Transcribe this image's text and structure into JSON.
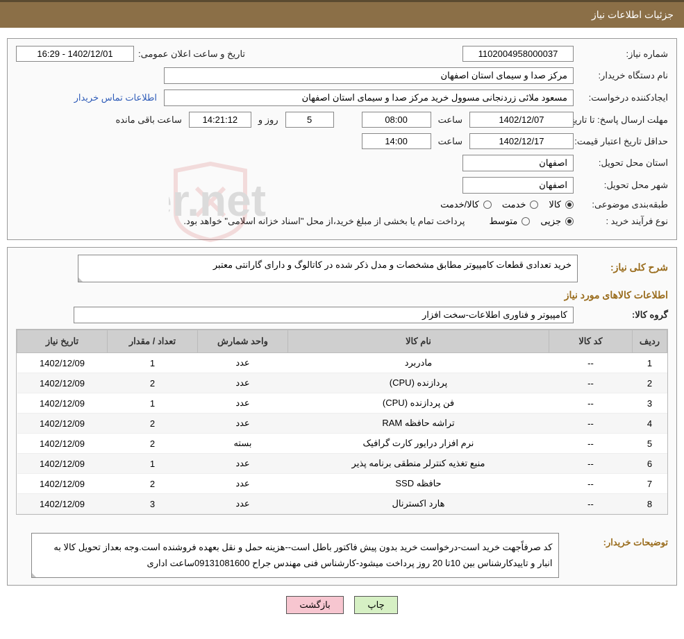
{
  "header": {
    "title": "جزئیات اطلاعات نیاز"
  },
  "labels": {
    "request_no": "شماره نیاز:",
    "announce_dt": "تاریخ و ساعت اعلان عمومی:",
    "buyer_org": "نام دستگاه خریدار:",
    "requester": "ایجاد‌کننده درخواست:",
    "buyer_contact": "اطلاعات تماس خریدار",
    "deadline": "مهلت ارسال پاسخ:",
    "until_date": "تا تاریخ:",
    "hour": "ساعت",
    "days_and": "روز و",
    "remaining": "ساعت باقی مانده",
    "min_validity": "حداقل تاریخ اعتبار قیمت:",
    "delivery_province": "استان محل تحویل:",
    "delivery_city": "شهر محل تحویل:",
    "category": "طبقه‌بندی موضوعی:",
    "purchase_type": "نوع فرآیند خرید :",
    "radio_goods": "کالا",
    "radio_service": "خدمت",
    "radio_goods_service": "کالا/خدمت",
    "radio_partial": "جزیی",
    "radio_medium": "متوسط",
    "payment_note": "پرداخت تمام یا بخشی از مبلغ خرید،از محل \"اسناد خزانه اسلامی\" خواهد بود.",
    "overall_desc": "شرح کلی نیاز:",
    "goods_info": "اطلاعات کالاهای مورد نیاز",
    "goods_group": "گروه کالا:",
    "buyer_notes": "توضیحات خریدار:"
  },
  "fields": {
    "request_no": "1102004958000037",
    "announce_dt": "1402/12/01 - 16:29",
    "buyer_org": "مرکز صدا و سیمای استان اصفهان",
    "requester": "مسعود ملائی زردنجانی مسوول خرید مرکز صدا و سیمای استان اصفهان",
    "deadline_date": "1402/12/07",
    "deadline_time": "08:00",
    "days_left": "5",
    "time_left": "14:21:12",
    "validity_date": "1402/12/17",
    "validity_time": "14:00",
    "province": "اصفهان",
    "city": "اصفهان",
    "overall_desc": "خرید تعدادی قطعات کامپیوتر مطابق مشخصات و مدل ذکر شده در کاتالوگ و دارای گارانتی معتبر",
    "goods_group": "کامپیوتر و فناوری اطلاعات-سخت افزار",
    "buyer_notes": "کد صرفاًجهت خرید است-درخواست خرید بدون پیش فاکتور باطل است--هزینه حمل و نقل بعهده فروشنده است.وجه بعداز تحویل کالا به انبار و تاییدکارشناس بین 10تا 20 روز پرداخت میشود-کارشناس فنی مهندس جراح 09131081600ساعت اداری"
  },
  "table": {
    "columns": [
      "ردیف",
      "کد کالا",
      "نام کالا",
      "واحد شمارش",
      "تعداد / مقدار",
      "تاریخ نیاز"
    ],
    "rows": [
      [
        "1",
        "--",
        "مادربرد",
        "عدد",
        "1",
        "1402/12/09"
      ],
      [
        "2",
        "--",
        "پردازنده (CPU)",
        "عدد",
        "2",
        "1402/12/09"
      ],
      [
        "3",
        "--",
        "فن پردازنده (CPU)",
        "عدد",
        "1",
        "1402/12/09"
      ],
      [
        "4",
        "--",
        "تراشه حافظه RAM",
        "عدد",
        "2",
        "1402/12/09"
      ],
      [
        "5",
        "--",
        "نرم افزار درایور کارت گرافیک",
        "بسته",
        "2",
        "1402/12/09"
      ],
      [
        "6",
        "--",
        "منبع تغذیه کنترلر منطقی برنامه پذیر",
        "عدد",
        "1",
        "1402/12/09"
      ],
      [
        "7",
        "--",
        "حافظه SSD",
        "عدد",
        "2",
        "1402/12/09"
      ],
      [
        "8",
        "--",
        "هارد اکسترنال",
        "عدد",
        "3",
        "1402/12/09"
      ]
    ],
    "col_widths": [
      "50px",
      "120px",
      "auto",
      "130px",
      "130px",
      "130px"
    ]
  },
  "buttons": {
    "print": "چاپ",
    "back": "بازگشت"
  },
  "colors": {
    "header_bg": "#8b6f47",
    "header_text": "#ffffff",
    "border": "#999999",
    "th_bg": "#cfcfcf",
    "row_alt": "#f6f6f6",
    "link": "#2e5bb8",
    "btn_print": "#d6f0c4",
    "btn_back": "#f7c6d0",
    "section_title": "#9a6d1e"
  },
  "watermark": {
    "text": "AriaTender.net"
  }
}
